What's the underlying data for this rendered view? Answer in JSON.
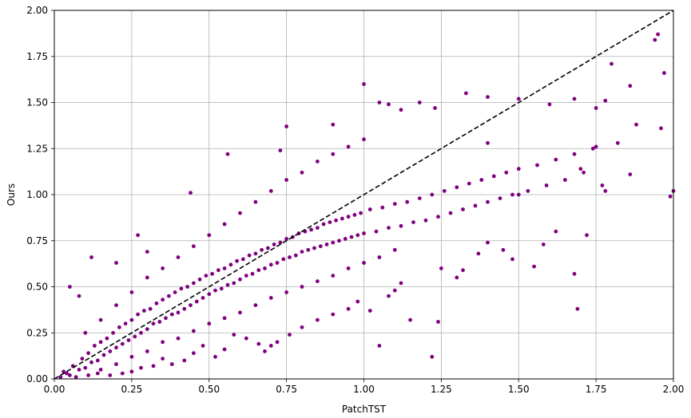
{
  "chart_data": {
    "type": "scatter",
    "title": "",
    "xlabel": "PatchTST",
    "ylabel": "Ours",
    "xlim": [
      0,
      2
    ],
    "ylim": [
      0,
      2
    ],
    "x_ticks": [
      "0.00",
      "0.25",
      "0.50",
      "0.75",
      "1.00",
      "1.25",
      "1.50",
      "1.75",
      "2.00"
    ],
    "y_ticks": [
      "0.00",
      "0.25",
      "0.50",
      "0.75",
      "1.00",
      "1.25",
      "1.50",
      "1.75",
      "2.00"
    ],
    "grid": true,
    "point_color": "#800080",
    "reference_line": {
      "style": "dashed",
      "color": "#000000",
      "from": [
        0,
        0
      ],
      "to": [
        2,
        2
      ]
    },
    "series": [
      {
        "points": [
          [
            0.02,
            0.01
          ],
          [
            0.03,
            0.04
          ],
          [
            0.05,
            0.02
          ],
          [
            0.06,
            0.07
          ],
          [
            0.08,
            0.05
          ],
          [
            0.09,
            0.11
          ],
          [
            0.1,
            0.06
          ],
          [
            0.11,
            0.14
          ],
          [
            0.12,
            0.09
          ],
          [
            0.13,
            0.18
          ],
          [
            0.14,
            0.1
          ],
          [
            0.15,
            0.2
          ],
          [
            0.16,
            0.13
          ],
          [
            0.17,
            0.22
          ],
          [
            0.18,
            0.15
          ],
          [
            0.19,
            0.25
          ],
          [
            0.2,
            0.17
          ],
          [
            0.21,
            0.28
          ],
          [
            0.22,
            0.19
          ],
          [
            0.23,
            0.3
          ],
          [
            0.24,
            0.21
          ],
          [
            0.25,
            0.32
          ],
          [
            0.26,
            0.23
          ],
          [
            0.27,
            0.35
          ],
          [
            0.28,
            0.25
          ],
          [
            0.29,
            0.37
          ],
          [
            0.3,
            0.27
          ],
          [
            0.31,
            0.38
          ],
          [
            0.32,
            0.3
          ],
          [
            0.33,
            0.41
          ],
          [
            0.34,
            0.31
          ],
          [
            0.35,
            0.43
          ],
          [
            0.36,
            0.33
          ],
          [
            0.37,
            0.45
          ],
          [
            0.38,
            0.35
          ],
          [
            0.39,
            0.47
          ],
          [
            0.4,
            0.36
          ],
          [
            0.41,
            0.49
          ],
          [
            0.42,
            0.38
          ],
          [
            0.43,
            0.5
          ],
          [
            0.44,
            0.4
          ],
          [
            0.45,
            0.52
          ],
          [
            0.46,
            0.42
          ],
          [
            0.47,
            0.54
          ],
          [
            0.48,
            0.44
          ],
          [
            0.49,
            0.56
          ],
          [
            0.5,
            0.46
          ],
          [
            0.51,
            0.57
          ],
          [
            0.52,
            0.48
          ],
          [
            0.53,
            0.59
          ],
          [
            0.54,
            0.49
          ],
          [
            0.55,
            0.6
          ],
          [
            0.56,
            0.51
          ],
          [
            0.57,
            0.62
          ],
          [
            0.58,
            0.52
          ],
          [
            0.59,
            0.64
          ],
          [
            0.6,
            0.54
          ],
          [
            0.61,
            0.65
          ],
          [
            0.62,
            0.56
          ],
          [
            0.63,
            0.67
          ],
          [
            0.64,
            0.57
          ],
          [
            0.65,
            0.68
          ],
          [
            0.66,
            0.59
          ],
          [
            0.67,
            0.7
          ],
          [
            0.68,
            0.6
          ],
          [
            0.69,
            0.71
          ],
          [
            0.7,
            0.62
          ],
          [
            0.71,
            0.73
          ],
          [
            0.72,
            0.63
          ],
          [
            0.73,
            0.74
          ],
          [
            0.74,
            0.65
          ],
          [
            0.75,
            0.76
          ],
          [
            0.76,
            0.66
          ],
          [
            0.77,
            0.77
          ],
          [
            0.78,
            0.67
          ],
          [
            0.79,
            0.79
          ],
          [
            0.8,
            0.69
          ],
          [
            0.81,
            0.8
          ],
          [
            0.82,
            0.7
          ],
          [
            0.83,
            0.81
          ],
          [
            0.84,
            0.71
          ],
          [
            0.85,
            0.82
          ],
          [
            0.86,
            0.72
          ],
          [
            0.87,
            0.84
          ],
          [
            0.88,
            0.73
          ],
          [
            0.89,
            0.85
          ],
          [
            0.9,
            0.74
          ],
          [
            0.91,
            0.86
          ],
          [
            0.92,
            0.75
          ],
          [
            0.93,
            0.87
          ],
          [
            0.94,
            0.76
          ],
          [
            0.95,
            0.88
          ],
          [
            0.96,
            0.77
          ],
          [
            0.97,
            0.89
          ],
          [
            0.98,
            0.78
          ],
          [
            0.99,
            0.9
          ],
          [
            1.0,
            0.79
          ],
          [
            1.02,
            0.92
          ],
          [
            1.04,
            0.8
          ],
          [
            1.06,
            0.93
          ],
          [
            1.08,
            0.82
          ],
          [
            1.1,
            0.95
          ],
          [
            1.12,
            0.83
          ],
          [
            1.14,
            0.96
          ],
          [
            1.16,
            0.85
          ],
          [
            1.18,
            0.98
          ],
          [
            1.2,
            0.86
          ],
          [
            1.22,
            1.0
          ],
          [
            1.24,
            0.88
          ],
          [
            1.26,
            1.02
          ],
          [
            1.28,
            0.9
          ],
          [
            1.3,
            1.04
          ],
          [
            1.32,
            0.92
          ],
          [
            1.34,
            1.06
          ],
          [
            1.36,
            0.94
          ],
          [
            1.38,
            1.08
          ],
          [
            1.4,
            0.96
          ],
          [
            1.42,
            1.1
          ],
          [
            1.44,
            0.98
          ],
          [
            1.46,
            1.12
          ],
          [
            1.48,
            1.0
          ],
          [
            1.5,
            1.14
          ],
          [
            1.53,
            1.02
          ],
          [
            1.56,
            1.16
          ],
          [
            1.59,
            1.05
          ],
          [
            1.62,
            1.19
          ],
          [
            1.65,
            1.08
          ],
          [
            1.68,
            1.22
          ],
          [
            1.71,
            1.12
          ],
          [
            1.75,
            1.26
          ],
          [
            0.15,
            0.05
          ],
          [
            0.2,
            0.08
          ],
          [
            0.25,
            0.12
          ],
          [
            0.3,
            0.15
          ],
          [
            0.35,
            0.2
          ],
          [
            0.4,
            0.22
          ],
          [
            0.45,
            0.26
          ],
          [
            0.5,
            0.3
          ],
          [
            0.55,
            0.33
          ],
          [
            0.6,
            0.36
          ],
          [
            0.65,
            0.4
          ],
          [
            0.7,
            0.44
          ],
          [
            0.75,
            0.47
          ],
          [
            0.8,
            0.5
          ],
          [
            0.85,
            0.53
          ],
          [
            0.9,
            0.56
          ],
          [
            0.95,
            0.6
          ],
          [
            1.0,
            0.63
          ],
          [
            1.05,
            0.66
          ],
          [
            1.1,
            0.7
          ],
          [
            0.1,
            0.25
          ],
          [
            0.15,
            0.32
          ],
          [
            0.2,
            0.4
          ],
          [
            0.25,
            0.47
          ],
          [
            0.3,
            0.55
          ],
          [
            0.35,
            0.6
          ],
          [
            0.4,
            0.66
          ],
          [
            0.45,
            0.72
          ],
          [
            0.5,
            0.78
          ],
          [
            0.55,
            0.84
          ],
          [
            0.6,
            0.9
          ],
          [
            0.65,
            0.96
          ],
          [
            0.7,
            1.02
          ],
          [
            0.75,
            1.08
          ],
          [
            0.8,
            1.12
          ],
          [
            0.85,
            1.18
          ],
          [
            0.9,
            1.22
          ],
          [
            0.95,
            1.26
          ],
          [
            1.0,
            1.3
          ],
          [
            0.05,
            0.5
          ],
          [
            0.08,
            0.45
          ],
          [
            0.12,
            0.66
          ],
          [
            0.2,
            0.63
          ],
          [
            0.27,
            0.78
          ],
          [
            0.3,
            0.69
          ],
          [
            0.44,
            1.01
          ],
          [
            0.56,
            1.22
          ],
          [
            0.73,
            1.24
          ],
          [
            0.75,
            1.37
          ],
          [
            0.9,
            1.38
          ],
          [
            1.0,
            1.6
          ],
          [
            1.05,
            1.5
          ],
          [
            1.08,
            1.49
          ],
          [
            1.12,
            1.46
          ],
          [
            1.18,
            1.5
          ],
          [
            1.23,
            1.47
          ],
          [
            1.33,
            1.55
          ],
          [
            1.4,
            1.53
          ],
          [
            1.5,
            1.52
          ],
          [
            1.6,
            1.49
          ],
          [
            1.68,
            1.52
          ],
          [
            1.75,
            1.47
          ],
          [
            1.78,
            1.51
          ],
          [
            1.8,
            1.71
          ],
          [
            1.86,
            1.59
          ],
          [
            1.94,
            1.84
          ],
          [
            1.95,
            1.87
          ],
          [
            1.97,
            1.66
          ],
          [
            1.96,
            1.36
          ],
          [
            1.88,
            1.38
          ],
          [
            1.82,
            1.28
          ],
          [
            1.74,
            1.25
          ],
          [
            1.7,
            1.14
          ],
          [
            1.78,
            1.02
          ],
          [
            1.77,
            1.05
          ],
          [
            1.99,
            0.99
          ],
          [
            2.0,
            1.02
          ],
          [
            1.86,
            1.11
          ],
          [
            1.72,
            0.78
          ],
          [
            1.68,
            0.57
          ],
          [
            1.62,
            0.8
          ],
          [
            1.58,
            0.73
          ],
          [
            1.55,
            0.61
          ],
          [
            1.48,
            0.65
          ],
          [
            1.45,
            0.7
          ],
          [
            1.4,
            0.74
          ],
          [
            1.37,
            0.68
          ],
          [
            1.32,
            0.59
          ],
          [
            1.3,
            0.55
          ],
          [
            1.25,
            0.6
          ],
          [
            1.22,
            0.12
          ],
          [
            1.24,
            0.31
          ],
          [
            1.12,
            0.52
          ],
          [
            1.1,
            0.48
          ],
          [
            1.08,
            0.45
          ],
          [
            1.05,
            0.18
          ],
          [
            1.02,
            0.37
          ],
          [
            0.98,
            0.42
          ],
          [
            0.95,
            0.38
          ],
          [
            0.9,
            0.35
          ],
          [
            0.85,
            0.32
          ],
          [
            0.8,
            0.28
          ],
          [
            0.76,
            0.24
          ],
          [
            0.72,
            0.2
          ],
          [
            0.7,
            0.18
          ],
          [
            0.68,
            0.15
          ],
          [
            0.66,
            0.19
          ],
          [
            0.62,
            0.22
          ],
          [
            0.58,
            0.24
          ],
          [
            0.55,
            0.16
          ],
          [
            0.52,
            0.12
          ],
          [
            0.48,
            0.18
          ],
          [
            0.45,
            0.14
          ],
          [
            0.42,
            0.1
          ],
          [
            0.38,
            0.08
          ],
          [
            0.35,
            0.11
          ],
          [
            0.32,
            0.07
          ],
          [
            0.28,
            0.06
          ],
          [
            0.25,
            0.04
          ],
          [
            0.22,
            0.03
          ],
          [
            0.18,
            0.02
          ],
          [
            0.14,
            0.03
          ],
          [
            0.11,
            0.02
          ],
          [
            0.07,
            0.01
          ],
          [
            0.04,
            0.03
          ],
          [
            1.15,
            0.32
          ],
          [
            1.69,
            0.38
          ],
          [
            1.5,
            1.0
          ],
          [
            1.4,
            1.28
          ]
        ]
      }
    ]
  }
}
